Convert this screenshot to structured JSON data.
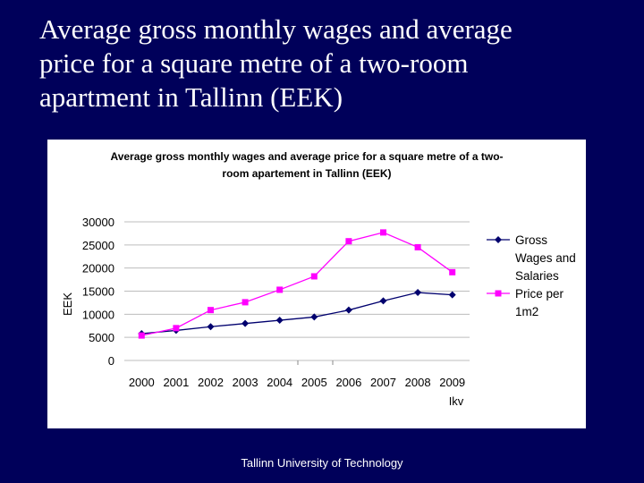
{
  "slide": {
    "title_lines": [
      "Average gross monthly wages and average",
      "price for a square metre of a two-room",
      "apartment in Tallinn (EEK)"
    ],
    "footer": "Tallinn University of Technology"
  },
  "chart_data": {
    "type": "line",
    "title_lines": [
      "Average gross monthly wages and average price for a square metre of a two-",
      "room apartement in Tallinn (EEK)"
    ],
    "categories": [
      "2000",
      "2001",
      "2002",
      "2003",
      "2004",
      "2005",
      "2006",
      "2007",
      "2008",
      "2009"
    ],
    "x_sublabel": "Ikv",
    "ylabel": "EEK",
    "ylim": [
      0,
      30000
    ],
    "yticks": [
      0,
      5000,
      10000,
      15000,
      20000,
      25000,
      30000
    ],
    "grid": true,
    "legend_position": "right",
    "series": [
      {
        "name": "Gross Wages and Salaries",
        "legend_lines": [
          "Gross",
          "Wages and",
          "Salaries"
        ],
        "marker": "diamond",
        "color": "#00006e",
        "values": [
          5800,
          6500,
          7300,
          8000,
          8700,
          9400,
          10900,
          12900,
          14700,
          14200
        ]
      },
      {
        "name": "Price per 1m2",
        "legend_lines": [
          "Price per",
          "1m2"
        ],
        "marker": "square",
        "color": "#ff00ff",
        "values": [
          5400,
          7000,
          10900,
          12600,
          15300,
          18200,
          25800,
          27700,
          24500,
          19100
        ]
      }
    ]
  }
}
